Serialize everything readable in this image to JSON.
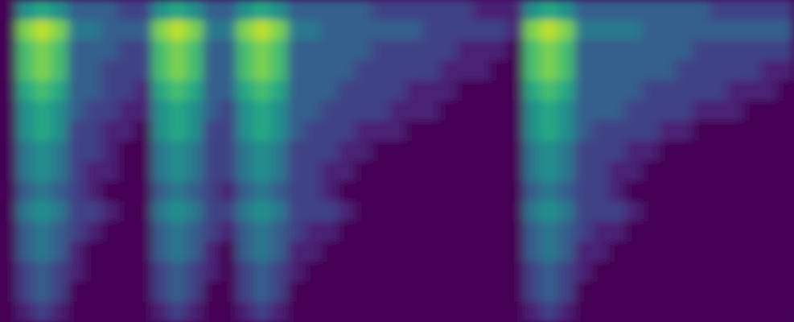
{
  "chart_data": {
    "type": "heatmap",
    "color": "viridis",
    "tick_labels": false,
    "zlim": [
      0,
      10
    ],
    "cells": [
      [
        0,
        5,
        6,
        5,
        3,
        3,
        3,
        2,
        2,
        5,
        6,
        5,
        3,
        3,
        5,
        6,
        5,
        3,
        3,
        3,
        3,
        3,
        2,
        2,
        2,
        2,
        2,
        2,
        1,
        1,
        1,
        5,
        6,
        5,
        3,
        3,
        3,
        3,
        3,
        3,
        3,
        3,
        2,
        2,
        2,
        2,
        2
      ],
      [
        0,
        8,
        9,
        8,
        4,
        4,
        3,
        3,
        3,
        8,
        9,
        8,
        4,
        4,
        8,
        9,
        8,
        4,
        4,
        3,
        3,
        3,
        3,
        3,
        3,
        2,
        2,
        2,
        2,
        2,
        1,
        8,
        9,
        8,
        4,
        4,
        4,
        4,
        3,
        3,
        3,
        3,
        3,
        3,
        3,
        3,
        3
      ],
      [
        0,
        7,
        8,
        7,
        3,
        3,
        3,
        2,
        2,
        7,
        8,
        7,
        3,
        3,
        7,
        8,
        7,
        3,
        3,
        3,
        3,
        3,
        2,
        2,
        2,
        2,
        2,
        1,
        1,
        1,
        0,
        7,
        8,
        7,
        3,
        3,
        3,
        3,
        3,
        3,
        3,
        2,
        2,
        2,
        2,
        2,
        2
      ],
      [
        0,
        7,
        8,
        7,
        3,
        3,
        2,
        2,
        2,
        7,
        8,
        7,
        3,
        3,
        7,
        8,
        7,
        3,
        3,
        3,
        3,
        2,
        2,
        2,
        2,
        2,
        1,
        1,
        1,
        0,
        0,
        7,
        8,
        7,
        3,
        3,
        3,
        3,
        3,
        3,
        2,
        2,
        2,
        2,
        2,
        1,
        1
      ],
      [
        0,
        6,
        7,
        6,
        3,
        3,
        2,
        2,
        1,
        6,
        7,
        6,
        3,
        3,
        6,
        7,
        6,
        3,
        3,
        3,
        2,
        2,
        2,
        2,
        1,
        1,
        1,
        0,
        0,
        0,
        0,
        6,
        7,
        6,
        3,
        3,
        3,
        3,
        2,
        2,
        2,
        2,
        2,
        1,
        1,
        1,
        0
      ],
      [
        0,
        5,
        6,
        5,
        3,
        2,
        2,
        1,
        1,
        5,
        6,
        5,
        3,
        2,
        5,
        6,
        5,
        3,
        3,
        2,
        2,
        2,
        2,
        1,
        1,
        1,
        0,
        0,
        0,
        0,
        0,
        5,
        6,
        5,
        3,
        3,
        3,
        2,
        2,
        2,
        2,
        1,
        1,
        1,
        0,
        0,
        0
      ],
      [
        0,
        5,
        6,
        5,
        2,
        2,
        1,
        1,
        0,
        5,
        6,
        5,
        2,
        2,
        5,
        6,
        5,
        3,
        2,
        2,
        2,
        1,
        1,
        1,
        0,
        0,
        0,
        0,
        0,
        0,
        0,
        5,
        6,
        5,
        3,
        2,
        2,
        2,
        2,
        1,
        1,
        0,
        0,
        0,
        0,
        0,
        0
      ],
      [
        0,
        4,
        5,
        4,
        2,
        2,
        1,
        0,
        0,
        4,
        5,
        4,
        2,
        2,
        4,
        5,
        4,
        2,
        2,
        2,
        1,
        1,
        0,
        0,
        0,
        0,
        0,
        0,
        0,
        0,
        0,
        4,
        5,
        4,
        2,
        2,
        2,
        1,
        1,
        0,
        0,
        0,
        0,
        0,
        0,
        0,
        0
      ],
      [
        0,
        4,
        5,
        4,
        2,
        1,
        1,
        0,
        0,
        4,
        5,
        4,
        2,
        2,
        4,
        5,
        4,
        2,
        2,
        1,
        1,
        0,
        0,
        0,
        0,
        0,
        0,
        0,
        0,
        0,
        0,
        4,
        5,
        4,
        2,
        2,
        1,
        1,
        0,
        0,
        0,
        0,
        0,
        0,
        0,
        0,
        0
      ],
      [
        0,
        3,
        4,
        3,
        2,
        1,
        0,
        0,
        0,
        3,
        4,
        3,
        2,
        1,
        3,
        4,
        3,
        2,
        2,
        1,
        0,
        0,
        0,
        0,
        0,
        0,
        0,
        0,
        0,
        0,
        0,
        3,
        4,
        3,
        2,
        2,
        1,
        0,
        0,
        0,
        0,
        0,
        0,
        0,
        0,
        0,
        0
      ],
      [
        0,
        4,
        5,
        4,
        2,
        2,
        1,
        0,
        0,
        4,
        5,
        4,
        2,
        2,
        4,
        5,
        4,
        2,
        2,
        2,
        1,
        0,
        0,
        0,
        0,
        0,
        0,
        0,
        0,
        0,
        0,
        4,
        5,
        4,
        2,
        2,
        2,
        1,
        0,
        0,
        0,
        0,
        0,
        0,
        0,
        0,
        0
      ],
      [
        0,
        3,
        4,
        3,
        2,
        1,
        0,
        0,
        0,
        3,
        4,
        3,
        2,
        1,
        3,
        4,
        3,
        2,
        1,
        1,
        0,
        0,
        0,
        0,
        0,
        0,
        0,
        0,
        0,
        0,
        0,
        3,
        4,
        3,
        2,
        1,
        1,
        0,
        0,
        0,
        0,
        0,
        0,
        0,
        0,
        0,
        0
      ],
      [
        0,
        3,
        4,
        3,
        1,
        0,
        0,
        0,
        0,
        3,
        4,
        3,
        1,
        0,
        3,
        4,
        3,
        1,
        1,
        0,
        0,
        0,
        0,
        0,
        0,
        0,
        0,
        0,
        0,
        0,
        0,
        3,
        4,
        3,
        1,
        1,
        0,
        0,
        0,
        0,
        0,
        0,
        0,
        0,
        0,
        0,
        0
      ],
      [
        0,
        2,
        3,
        2,
        1,
        0,
        0,
        0,
        0,
        2,
        3,
        2,
        1,
        0,
        2,
        3,
        2,
        1,
        0,
        0,
        0,
        0,
        0,
        0,
        0,
        0,
        0,
        0,
        0,
        0,
        0,
        2,
        3,
        2,
        1,
        0,
        0,
        0,
        0,
        0,
        0,
        0,
        0,
        0,
        0,
        0,
        0
      ],
      [
        0,
        2,
        3,
        2,
        0,
        0,
        0,
        0,
        0,
        2,
        3,
        2,
        0,
        0,
        2,
        3,
        2,
        0,
        0,
        0,
        0,
        0,
        0,
        0,
        0,
        0,
        0,
        0,
        0,
        0,
        0,
        2,
        3,
        2,
        0,
        0,
        0,
        0,
        0,
        0,
        0,
        0,
        0,
        0,
        0,
        0,
        0
      ],
      [
        0,
        1,
        2,
        1,
        0,
        0,
        0,
        0,
        0,
        1,
        2,
        1,
        0,
        0,
        1,
        2,
        1,
        0,
        0,
        0,
        0,
        0,
        0,
        0,
        0,
        0,
        0,
        0,
        0,
        0,
        0,
        1,
        2,
        1,
        0,
        0,
        0,
        0,
        0,
        0,
        0,
        0,
        0,
        0,
        0,
        0,
        0
      ]
    ]
  }
}
